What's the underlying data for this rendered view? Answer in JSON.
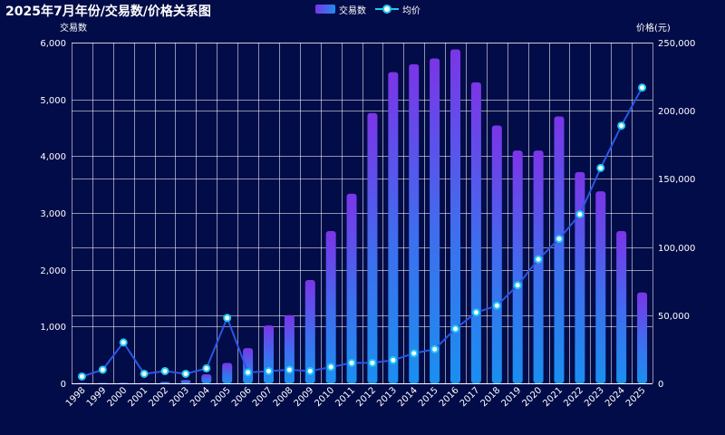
{
  "chart_data": {
    "type": "bar+line",
    "title": "2025年7月年份/交易数/价格关系图",
    "legend": [
      {
        "name": "交易数",
        "kind": "bar"
      },
      {
        "name": "均价",
        "kind": "line"
      }
    ],
    "ylabel_left": "交易数",
    "ylabel_right": "价格(元)",
    "ylim_left": [
      0,
      6000
    ],
    "ylim_right": [
      0,
      250000
    ],
    "yticks_left": [
      "0",
      "1,000",
      "2,000",
      "3,000",
      "4,000",
      "5,000",
      "6,000"
    ],
    "yticks_right": [
      "0",
      "50,000",
      "100,000",
      "150,000",
      "200,000",
      "250,000"
    ],
    "categories": [
      "1998",
      "1999",
      "2000",
      "2001",
      "2002",
      "2003",
      "2004",
      "2005",
      "2006",
      "2007",
      "2008",
      "2009",
      "2010",
      "2011",
      "2012",
      "2013",
      "2014",
      "2015",
      "2016",
      "2017",
      "2018",
      "2019",
      "2020",
      "2021",
      "2022",
      "2023",
      "2024",
      "2025"
    ],
    "series": [
      {
        "name": "交易数",
        "type": "bar",
        "axis": "left",
        "values": [
          2,
          5,
          10,
          8,
          25,
          60,
          160,
          360,
          620,
          1020,
          1200,
          1820,
          2680,
          3340,
          4760,
          5480,
          5620,
          5720,
          5880,
          5300,
          4540,
          4100,
          4100,
          4700,
          3720,
          3380,
          2680,
          1600
        ]
      },
      {
        "name": "均价",
        "type": "line",
        "axis": "right",
        "values": [
          5000,
          10000,
          30000,
          7000,
          9000,
          7000,
          11000,
          48000,
          8000,
          9000,
          10000,
          9000,
          12000,
          15000,
          15000,
          17000,
          22000,
          25000,
          40000,
          52000,
          57000,
          72000,
          91000,
          106000,
          124000,
          158000,
          189000,
          217000
        ]
      }
    ],
    "grid": true
  }
}
